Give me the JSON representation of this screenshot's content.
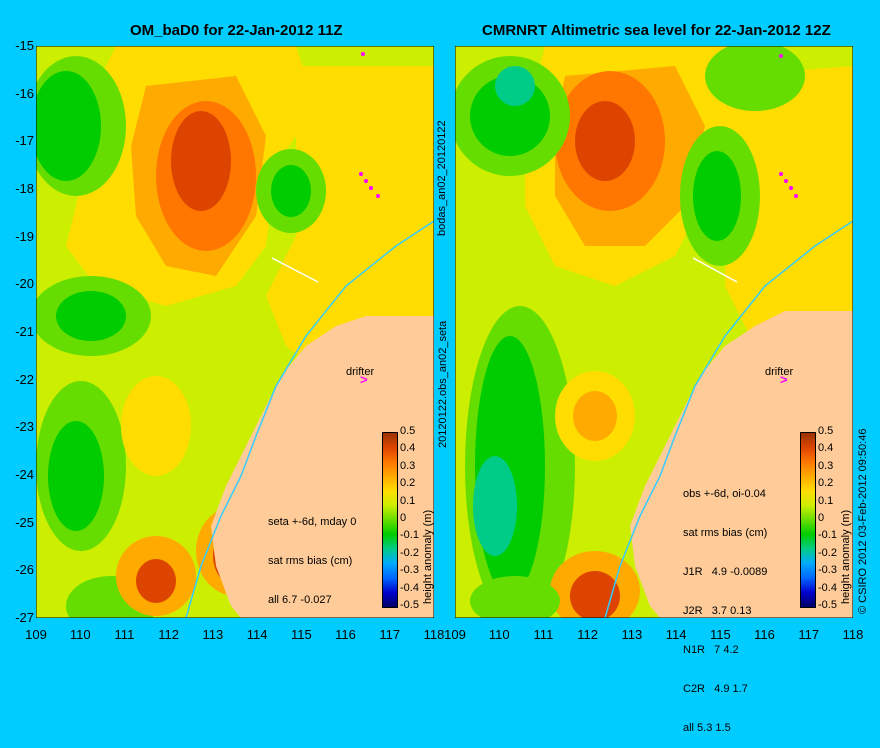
{
  "chart_data": [
    {
      "type": "heatmap",
      "title": "OM_baD0 for 22-Jan-2012 11Z",
      "xlim": [
        109,
        118
      ],
      "ylim": [
        -27,
        -15
      ],
      "x_ticks": [
        "109",
        "110",
        "111",
        "112",
        "113",
        "114",
        "115",
        "116",
        "117",
        "118"
      ],
      "y_ticks": [
        "-15",
        "-16",
        "-17",
        "-18",
        "-19",
        "-20",
        "-21",
        "-22",
        "-23",
        "-24",
        "-25",
        "-26",
        "-27"
      ],
      "side_label": "bodas_an02_20120122",
      "annotation_lines": [
        "seta +-6d, mday 0",
        "sat rms bias (cm)",
        "all 6.7 -0.027"
      ],
      "drifter_label": "drifter",
      "drifter_marker": ">",
      "colorbar": {
        "label": "height anomaly (m)",
        "ticks": [
          "0.5",
          "0.4",
          "0.3",
          "0.2",
          "0.1",
          "0",
          "-0.1",
          "-0.2",
          "-0.3",
          "-0.4",
          "-0.5"
        ],
        "range": [
          -0.5,
          0.5
        ]
      }
    },
    {
      "type": "heatmap",
      "title": "CMRNRT Altimetric sea level  for 22-Jan-2012 12Z",
      "xlim": [
        109,
        118
      ],
      "ylim": [
        -27,
        -15
      ],
      "x_ticks": [
        "109",
        "110",
        "111",
        "112",
        "113",
        "114",
        "115",
        "116",
        "117",
        "118"
      ],
      "y_ticks": [],
      "side_label": "20120122.obs_an02_seta",
      "annotation_lines": [
        "obs +-6d, oi-0.04",
        "sat rms bias (cm)",
        "J1R   4.9 -0.0089",
        "J2R   3.7 0.13",
        "N1R   7 4.2",
        "C2R   4.9 1.7",
        "all 5.3 1.5"
      ],
      "drifter_label": "drifter",
      "drifter_marker": ">",
      "colorbar": {
        "label": "height anomaly (m)",
        "ticks": [
          "0.5",
          "0.4",
          "0.3",
          "0.2",
          "0.1",
          "0",
          "-0.1",
          "-0.2",
          "-0.3",
          "-0.4",
          "-0.5"
        ],
        "range": [
          -0.5,
          0.5
        ]
      }
    }
  ],
  "copyright": "© CSIRO 2012   03-Feb-2012 09:50:46",
  "colors": {
    "background": "#00ccff",
    "land": "#ffcc99",
    "coastline_current": "#33ccff",
    "observation_marker": "#ff00ff",
    "colorbar_scale": [
      "#000066",
      "#0000cc",
      "#0066ff",
      "#00aaff",
      "#00cc88",
      "#00cc00",
      "#66dd00",
      "#ccee00",
      "#ffdd00",
      "#ffaa00",
      "#ff7700",
      "#dd4400",
      "#993300"
    ]
  }
}
